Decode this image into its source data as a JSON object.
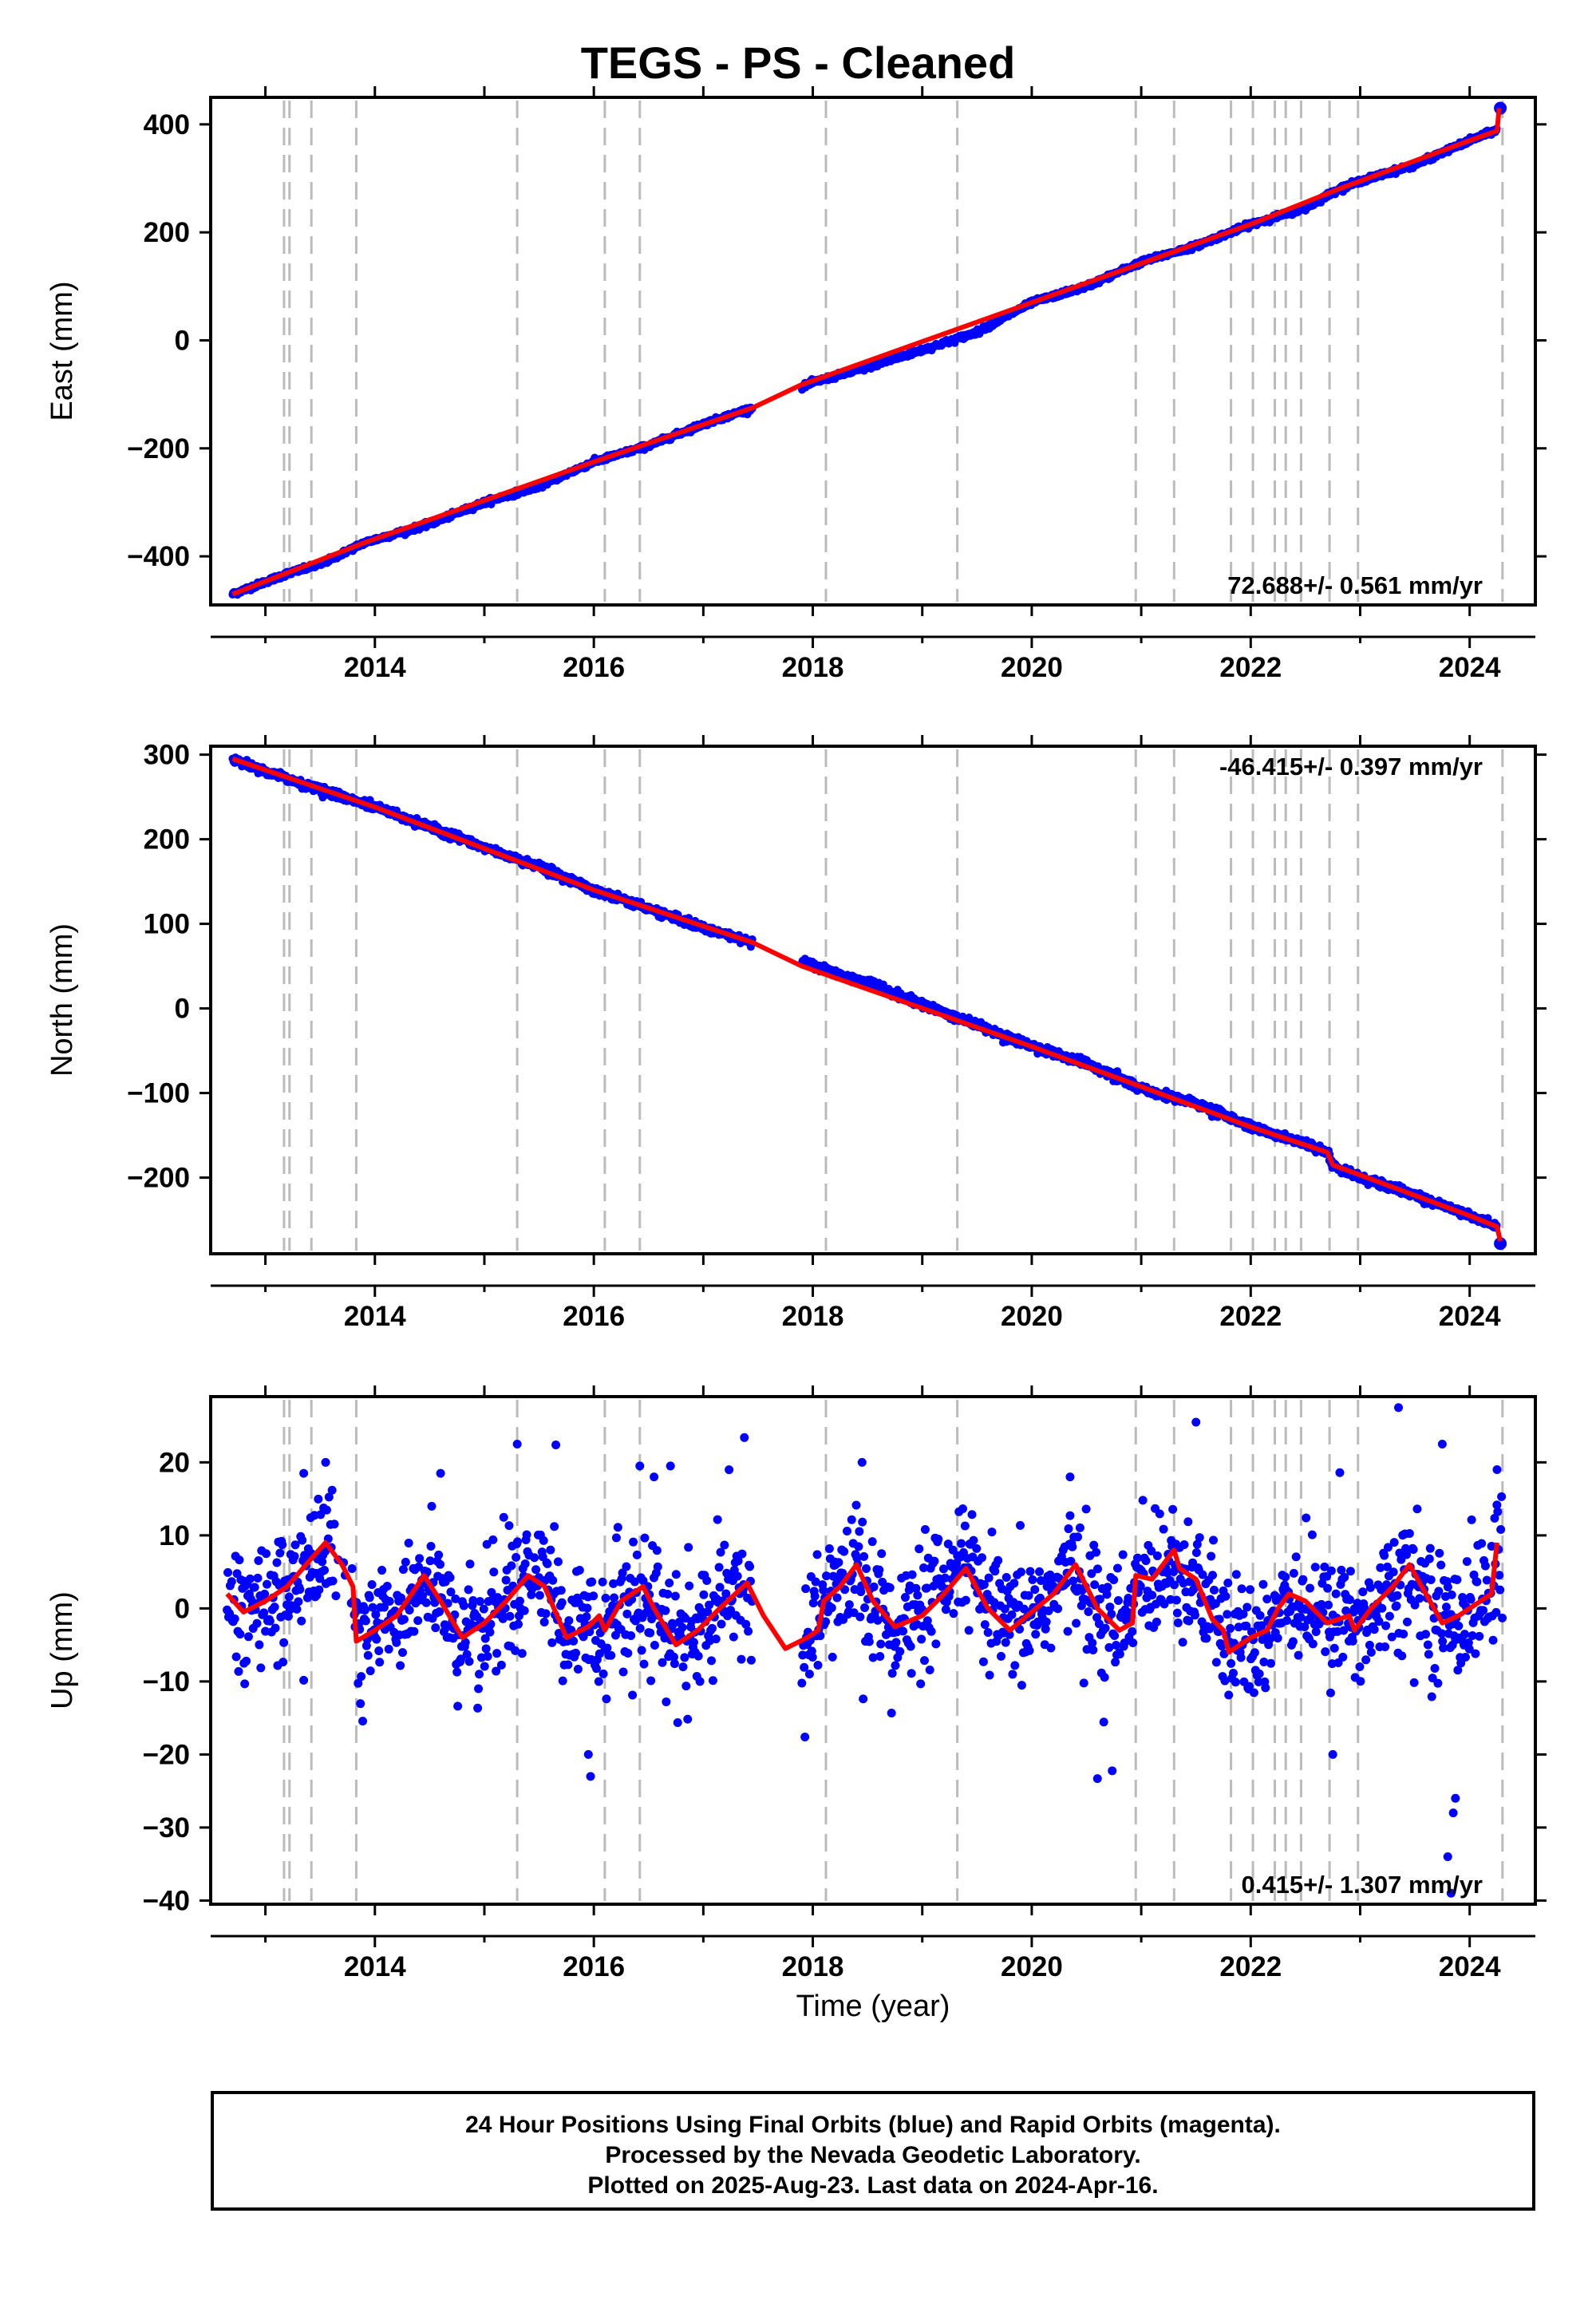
{
  "title": "TEGS  - PS - Cleaned",
  "footer": {
    "line1": "24 Hour Positions Using Final Orbits (blue) and Rapid Orbits (magenta).",
    "line2": "Processed by the Nevada Geodetic Laboratory.",
    "line3": "Plotted on 2025-Aug-23. Last data on 2024-Apr-16."
  },
  "colors": {
    "data": "#0000ff",
    "model": "#ff0000",
    "breaks": "#bbbbbb",
    "frame": "#000000"
  },
  "chart_data": [
    {
      "type": "scatter",
      "ylabel": "East (mm)",
      "xlabel": "",
      "xlim": [
        2012.5,
        2024.6
      ],
      "ylim": [
        -490,
        450
      ],
      "xticks": [
        2014,
        2016,
        2018,
        2020,
        2022,
        2024
      ],
      "yticks": [
        -400,
        -200,
        0,
        200,
        400
      ],
      "rate_text": "72.688+/- 0.561 mm/yr",
      "rate_position": "bottom-right",
      "data_gap": [
        2017.45,
        2017.9
      ],
      "series": [
        {
          "role": "data",
          "points": [
            [
              2012.7,
              -470
            ],
            [
              2013.2,
              -432
            ],
            [
              2013.5,
              -415
            ],
            [
              2013.9,
              -375
            ],
            [
              2014.5,
              -340
            ],
            [
              2015.0,
              -300
            ],
            [
              2015.5,
              -270
            ],
            [
              2016.0,
              -225
            ],
            [
              2016.5,
              -195
            ],
            [
              2017.0,
              -155
            ],
            [
              2017.45,
              -125
            ],
            [
              2018.0,
              -78
            ],
            [
              2018.5,
              -50
            ],
            [
              2019.0,
              -18
            ],
            [
              2019.5,
              15
            ],
            [
              2020.0,
              70
            ],
            [
              2020.5,
              100
            ],
            [
              2021.0,
              145
            ],
            [
              2021.5,
              175
            ],
            [
              2022.0,
              215
            ],
            [
              2022.5,
              245
            ],
            [
              2022.8,
              280
            ],
            [
              2023.0,
              295
            ],
            [
              2023.5,
              325
            ],
            [
              2024.0,
              370
            ],
            [
              2024.25,
              390
            ],
            [
              2024.28,
              430
            ]
          ]
        },
        {
          "role": "model",
          "points": [
            [
              2012.7,
              -470
            ],
            [
              2013.9,
              -375
            ],
            [
              2016.0,
              -225
            ],
            [
              2017.45,
              -125
            ],
            [
              2017.9,
              -82
            ],
            [
              2020.0,
              70
            ],
            [
              2022.0,
              215
            ],
            [
              2022.8,
              280
            ],
            [
              2024.0,
              370
            ],
            [
              2024.25,
              388
            ],
            [
              2024.27,
              430
            ]
          ]
        }
      ]
    },
    {
      "type": "scatter",
      "ylabel": "North (mm)",
      "xlabel": "",
      "xlim": [
        2012.5,
        2024.6
      ],
      "ylim": [
        -290,
        310
      ],
      "xticks": [
        2014,
        2016,
        2018,
        2020,
        2022,
        2024
      ],
      "yticks": [
        -200,
        -100,
        0,
        100,
        200,
        300
      ],
      "rate_text": "-46.415+/- 0.397 mm/yr",
      "rate_position": "top-right",
      "data_gap": [
        2017.45,
        2017.9
      ],
      "series": [
        {
          "role": "data",
          "points": [
            [
              2012.7,
              295
            ],
            [
              2013.0,
              280
            ],
            [
              2013.5,
              258
            ],
            [
              2014.0,
              238
            ],
            [
              2014.5,
              215
            ],
            [
              2015.0,
              190
            ],
            [
              2015.5,
              168
            ],
            [
              2016.0,
              140
            ],
            [
              2016.5,
              118
            ],
            [
              2017.0,
              95
            ],
            [
              2017.45,
              78
            ],
            [
              2018.0,
              50
            ],
            [
              2018.5,
              30
            ],
            [
              2019.0,
              5
            ],
            [
              2019.5,
              -20
            ],
            [
              2020.0,
              -45
            ],
            [
              2020.5,
              -65
            ],
            [
              2021.0,
              -95
            ],
            [
              2021.5,
              -112
            ],
            [
              2022.0,
              -140
            ],
            [
              2022.5,
              -160
            ],
            [
              2022.7,
              -170
            ],
            [
              2022.75,
              -185
            ],
            [
              2023.0,
              -200
            ],
            [
              2023.5,
              -220
            ],
            [
              2024.0,
              -245
            ],
            [
              2024.25,
              -258
            ],
            [
              2024.28,
              -278
            ]
          ]
        },
        {
          "role": "model",
          "points": [
            [
              2012.7,
              295
            ],
            [
              2014.0,
              238
            ],
            [
              2016.0,
              140
            ],
            [
              2017.45,
              78
            ],
            [
              2017.9,
              50
            ],
            [
              2020.0,
              -45
            ],
            [
              2022.0,
              -140
            ],
            [
              2022.7,
              -170
            ],
            [
              2022.75,
              -185
            ],
            [
              2024.0,
              -245
            ],
            [
              2024.25,
              -258
            ],
            [
              2024.28,
              -275
            ]
          ]
        }
      ]
    },
    {
      "type": "scatter",
      "ylabel": "Up (mm)",
      "xlabel": "Time (year)",
      "xlim": [
        2012.5,
        2024.6
      ],
      "ylim": [
        -40.5,
        29
      ],
      "xticks": [
        2014,
        2016,
        2018,
        2020,
        2022,
        2024
      ],
      "yticks": [
        -40,
        -30,
        -20,
        -10,
        0,
        10,
        20
      ],
      "rate_text": "0.415+/- 1.307 mm/yr",
      "rate_position": "bottom-right",
      "data_gap": [
        2017.45,
        2017.9
      ],
      "series": [
        {
          "role": "model",
          "points": [
            [
              2012.65,
              2
            ],
            [
              2012.8,
              -0.5
            ],
            [
              2013.0,
              1
            ],
            [
              2013.2,
              3
            ],
            [
              2013.4,
              6.5
            ],
            [
              2013.55,
              9
            ],
            [
              2013.7,
              6
            ],
            [
              2013.8,
              3
            ],
            [
              2013.83,
              -4.5
            ],
            [
              2014.0,
              -3
            ],
            [
              2014.2,
              -1
            ],
            [
              2014.45,
              4.5
            ],
            [
              2014.6,
              1
            ],
            [
              2014.8,
              -4
            ],
            [
              2015.0,
              -2
            ],
            [
              2015.2,
              1
            ],
            [
              2015.4,
              4.5
            ],
            [
              2015.55,
              3
            ],
            [
              2015.75,
              -4
            ],
            [
              2015.95,
              -2.5
            ],
            [
              2016.05,
              -1
            ],
            [
              2016.1,
              -3
            ],
            [
              2016.25,
              1
            ],
            [
              2016.45,
              3
            ],
            [
              2016.55,
              0
            ],
            [
              2016.75,
              -5
            ],
            [
              2016.95,
              -3
            ],
            [
              2017.15,
              0
            ],
            [
              2017.4,
              3.5
            ],
            [
              2017.55,
              -1
            ],
            [
              2017.75,
              -5.5
            ],
            [
              2017.95,
              -4
            ],
            [
              2018.05,
              -3
            ],
            [
              2018.1,
              1
            ],
            [
              2018.25,
              3
            ],
            [
              2018.4,
              6
            ],
            [
              2018.55,
              1
            ],
            [
              2018.75,
              -2.5
            ],
            [
              2019.0,
              -1
            ],
            [
              2019.2,
              2
            ],
            [
              2019.4,
              5.5
            ],
            [
              2019.6,
              0
            ],
            [
              2019.8,
              -3
            ],
            [
              2020.0,
              -0.5
            ],
            [
              2020.2,
              2
            ],
            [
              2020.4,
              6
            ],
            [
              2020.6,
              0
            ],
            [
              2020.8,
              -3
            ],
            [
              2020.92,
              -2
            ],
            [
              2020.95,
              4.5
            ],
            [
              2021.1,
              4
            ],
            [
              2021.3,
              8
            ],
            [
              2021.35,
              5.5
            ],
            [
              2021.5,
              4
            ],
            [
              2021.65,
              -1.5
            ],
            [
              2021.75,
              -3
            ],
            [
              2021.8,
              -6
            ],
            [
              2022.0,
              -4
            ],
            [
              2022.15,
              -3
            ],
            [
              2022.25,
              0
            ],
            [
              2022.35,
              2
            ],
            [
              2022.5,
              1
            ],
            [
              2022.7,
              -2
            ],
            [
              2022.9,
              -1
            ],
            [
              2022.95,
              -3
            ],
            [
              2023.1,
              0
            ],
            [
              2023.3,
              3
            ],
            [
              2023.45,
              6
            ],
            [
              2023.6,
              2
            ],
            [
              2023.75,
              -2
            ],
            [
              2023.9,
              -1
            ],
            [
              2024.1,
              1
            ],
            [
              2024.2,
              2
            ],
            [
              2024.25,
              9
            ]
          ]
        }
      ]
    }
  ]
}
